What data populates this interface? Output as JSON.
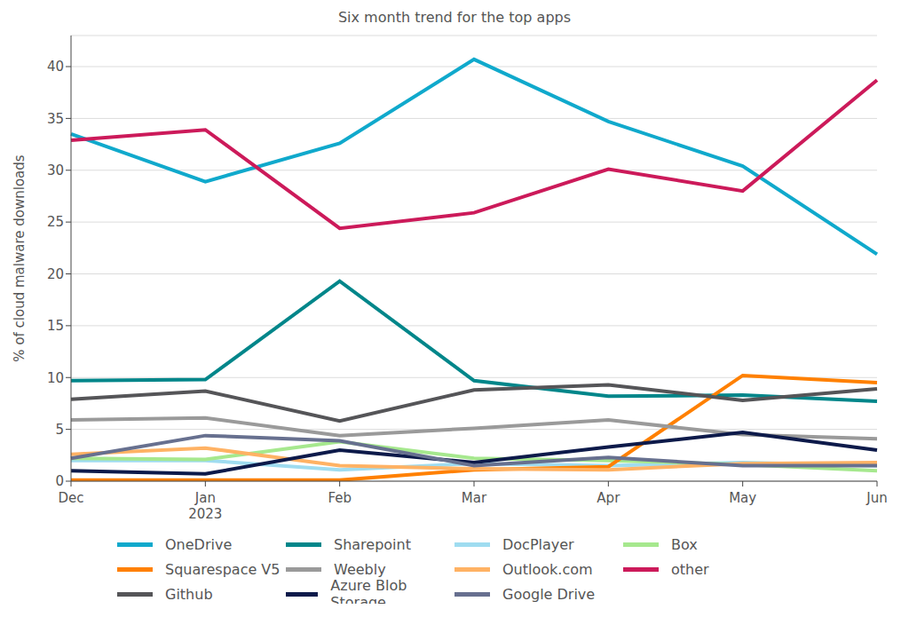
{
  "chart_data": {
    "type": "line",
    "title": "Six month trend for the top apps",
    "y_label": "% of cloud malware downloads",
    "categories": [
      "Dec",
      "Jan 2023",
      "Feb",
      "Mar",
      "Apr",
      "May",
      "Jun"
    ],
    "ylim": [
      0,
      43
    ],
    "yticks": [
      0,
      5,
      10,
      15,
      20,
      25,
      30,
      35,
      40
    ],
    "grid": true,
    "legend": "bottom",
    "series": [
      {
        "name": "OneDrive",
        "color": "#10a9cc",
        "values": [
          33.5,
          28.9,
          32.6,
          40.7,
          34.7,
          30.4,
          21.9
        ]
      },
      {
        "name": "Sharepoint",
        "color": "#00868a",
        "values": [
          9.7,
          9.8,
          19.3,
          9.7,
          8.2,
          8.3,
          7.7
        ]
      },
      {
        "name": "DocPlayer",
        "color": "#9fdcf0",
        "values": [
          2.0,
          2.0,
          1.1,
          1.7,
          1.5,
          1.8,
          1.5
        ]
      },
      {
        "name": "Box",
        "color": "#a6e88e",
        "values": [
          2.2,
          2.1,
          3.8,
          2.2,
          2.0,
          1.6,
          1.0
        ]
      },
      {
        "name": "Squarespace V5",
        "color": "#ff8000",
        "values": [
          0.1,
          0.1,
          0.1,
          1.1,
          1.4,
          10.2,
          9.5
        ]
      },
      {
        "name": "Weebly",
        "color": "#9a9a9a",
        "values": [
          5.9,
          6.1,
          4.4,
          5.1,
          5.9,
          4.5,
          4.1
        ]
      },
      {
        "name": "Outlook.com",
        "color": "#ffb264",
        "values": [
          2.6,
          3.2,
          1.5,
          1.2,
          1.1,
          1.7,
          1.8
        ]
      },
      {
        "name": "other",
        "color": "#cc1a5a",
        "values": [
          32.9,
          33.9,
          24.4,
          25.9,
          30.1,
          28.0,
          38.7
        ]
      },
      {
        "name": "Github",
        "color": "#555558",
        "values": [
          7.9,
          8.7,
          5.8,
          8.8,
          9.3,
          7.8,
          8.9
        ]
      },
      {
        "name": "Azure Blob Storage",
        "color": "#0d1a4a",
        "values": [
          1.0,
          0.7,
          3.0,
          1.8,
          3.3,
          4.7,
          3.0
        ]
      },
      {
        "name": "Google Drive",
        "color": "#67708f",
        "values": [
          2.2,
          4.4,
          3.9,
          1.5,
          2.3,
          1.5,
          1.5
        ]
      }
    ]
  }
}
